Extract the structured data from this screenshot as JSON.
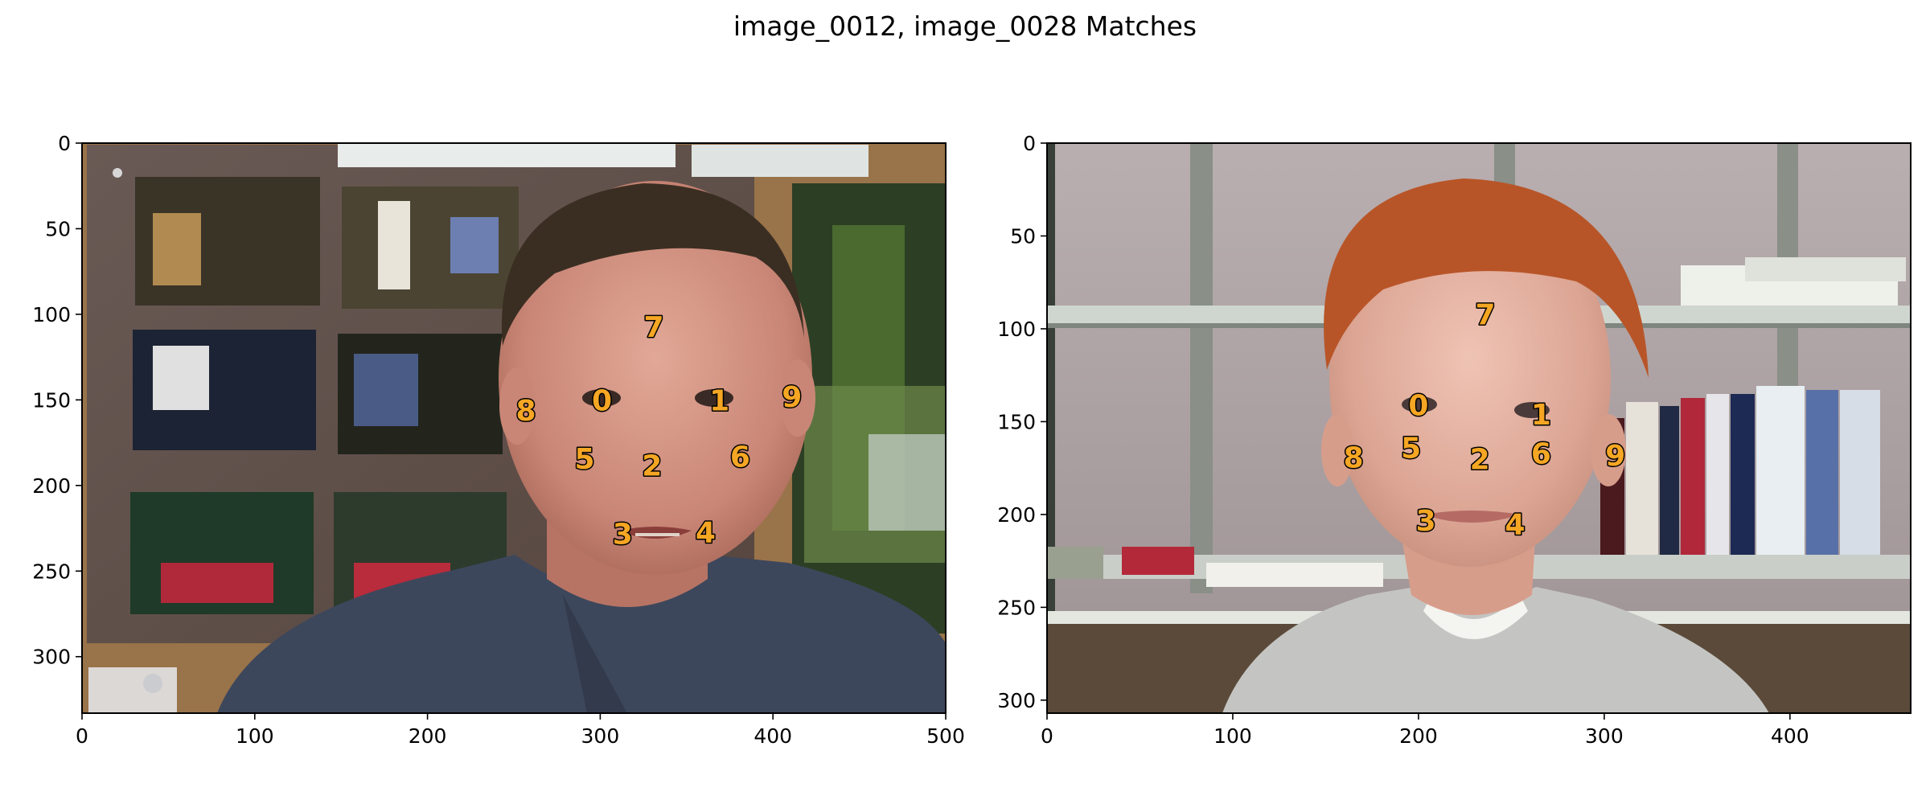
{
  "title": "image_0012, image_0028 Matches",
  "colors": {
    "keypoint": "#f5a623",
    "keypoint_outline": "#000000"
  },
  "chart_data": [
    {
      "type": "scatter",
      "name": "image_0012",
      "image_extent": {
        "width": 500,
        "height": 333
      },
      "xlim": [
        0,
        500
      ],
      "ylim": [
        333,
        0
      ],
      "xticks": [
        0,
        100,
        200,
        300,
        400,
        500
      ],
      "yticks": [
        0,
        50,
        100,
        150,
        200,
        250,
        300
      ],
      "grid": false,
      "points": [
        {
          "label": "0",
          "x": 301,
          "y": 150
        },
        {
          "label": "1",
          "x": 369,
          "y": 150
        },
        {
          "label": "2",
          "x": 330,
          "y": 188
        },
        {
          "label": "3",
          "x": 313,
          "y": 228
        },
        {
          "label": "4",
          "x": 361,
          "y": 227
        },
        {
          "label": "5",
          "x": 291,
          "y": 184
        },
        {
          "label": "6",
          "x": 381,
          "y": 183
        },
        {
          "label": "7",
          "x": 331,
          "y": 107
        },
        {
          "label": "8",
          "x": 257,
          "y": 156
        },
        {
          "label": "9",
          "x": 411,
          "y": 148
        }
      ]
    },
    {
      "type": "scatter",
      "name": "image_0028",
      "image_extent": {
        "width": 465,
        "height": 307
      },
      "xlim": [
        0,
        465
      ],
      "ylim": [
        307,
        0
      ],
      "xticks": [
        0,
        100,
        200,
        300,
        400
      ],
      "yticks": [
        0,
        50,
        100,
        150,
        200,
        250,
        300
      ],
      "grid": false,
      "points": [
        {
          "label": "0",
          "x": 200,
          "y": 141
        },
        {
          "label": "1",
          "x": 266,
          "y": 146
        },
        {
          "label": "2",
          "x": 233,
          "y": 170
        },
        {
          "label": "3",
          "x": 204,
          "y": 203
        },
        {
          "label": "4",
          "x": 252,
          "y": 205
        },
        {
          "label": "5",
          "x": 196,
          "y": 164
        },
        {
          "label": "6",
          "x": 266,
          "y": 167
        },
        {
          "label": "7",
          "x": 236,
          "y": 92
        },
        {
          "label": "8",
          "x": 165,
          "y": 169
        },
        {
          "label": "9",
          "x": 306,
          "y": 168
        }
      ]
    }
  ]
}
